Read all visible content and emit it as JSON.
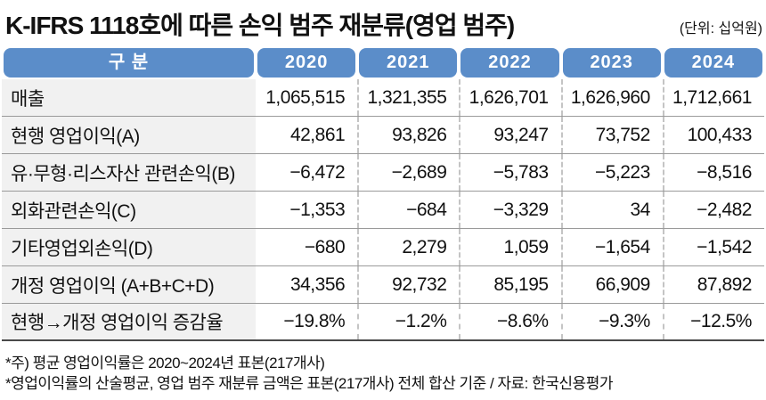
{
  "title": "K-IFRS 1118호에 따른 손익 범주 재분류(영업 범주)",
  "unit_note": "(단위: 십억원)",
  "colors": {
    "header_blue": "#5b8dc9",
    "label_bg": "#f1f1f1",
    "row_line": "#9a9a9a",
    "dashed_separator": "#c4c4c4"
  },
  "table": {
    "header": [
      "구 분",
      "2020",
      "2021",
      "2022",
      "2023",
      "2024"
    ],
    "rows": [
      {
        "label": "매출",
        "values": [
          "1,065,515",
          "1,321,355",
          "1,626,701",
          "1,626,960",
          "1,712,661"
        ]
      },
      {
        "label": "현행 영업이익(A)",
        "values": [
          "42,861",
          "93,826",
          "93,247",
          "73,752",
          "100,433"
        ]
      },
      {
        "label": "유·무형·리스자산 관련손익(B)",
        "values": [
          "−6,472",
          "−2,689",
          "−5,783",
          "−5,223",
          "−8,516"
        ]
      },
      {
        "label": "외화관련손익(C)",
        "values": [
          "−1,353",
          "−684",
          "−3,329",
          "34",
          "−2,482"
        ]
      },
      {
        "label": "기타영업외손익(D)",
        "values": [
          "−680",
          "2,279",
          "1,059",
          "−1,654",
          "−1,542"
        ]
      },
      {
        "label": "개정 영업이익 (A+B+C+D)",
        "values": [
          "34,356",
          "92,732",
          "85,195",
          "66,909",
          "87,892"
        ]
      },
      {
        "label": "현행→개정 영업이익 증감율",
        "values": [
          "−19.8%",
          "−1.2%",
          "−8.6%",
          "−9.3%",
          "−12.5%"
        ]
      }
    ]
  },
  "footnotes": [
    "*주) 평균 영업이익률은 2020~2024년 표본(217개사)",
    "*영업이익률의 산술평균, 영업 범주 재분류 금액은 표본(217개사) 전체 합산 기준 / 자료: 한국신용평가"
  ],
  "chart_data": {
    "type": "table",
    "title": "K-IFRS 1118호에 따른 손익 범주 재분류(영업 범주)",
    "unit": "십억원",
    "columns": [
      "구 분",
      "2020",
      "2021",
      "2022",
      "2023",
      "2024"
    ],
    "rows": [
      [
        "매출",
        1065515,
        1321355,
        1626701,
        1626960,
        1712661
      ],
      [
        "현행 영업이익(A)",
        42861,
        93826,
        93247,
        73752,
        100433
      ],
      [
        "유·무형·리스자산 관련손익(B)",
        -6472,
        -2689,
        -5783,
        -5223,
        -8516
      ],
      [
        "외화관련손익(C)",
        -1353,
        -684,
        -3329,
        34,
        -2482
      ],
      [
        "기타영업외손익(D)",
        -680,
        2279,
        1059,
        -1654,
        -1542
      ],
      [
        "개정 영업이익 (A+B+C+D)",
        34356,
        92732,
        85195,
        66909,
        87892
      ],
      [
        "현행→개정 영업이익 증감율",
        "-19.8%",
        "-1.2%",
        "-8.6%",
        "-9.3%",
        "-12.5%"
      ]
    ],
    "source": "한국신용평가"
  }
}
